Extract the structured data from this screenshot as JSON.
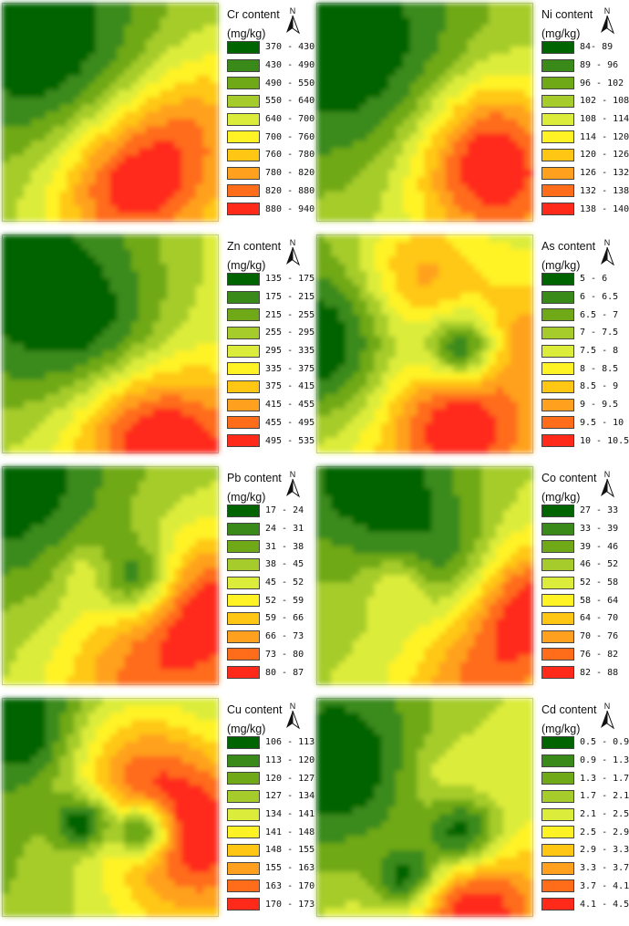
{
  "palette": [
    "#006400",
    "#3a8a1a",
    "#6fa918",
    "#a6cc2c",
    "#dcec3a",
    "#fff326",
    "#ffc714",
    "#ffa11e",
    "#ff6c1a",
    "#ff2a1a"
  ],
  "chart_data": [
    {
      "type": "heatmap",
      "element": "Cr",
      "title": "Cr content",
      "unit": "(mg/kg)",
      "classes": [
        "370 - 430",
        "430 - 490",
        "490 - 550",
        "550 - 640",
        "640 - 700",
        "700 - 760",
        "760 - 780",
        "780 - 820",
        "820 - 880",
        "880 - 940"
      ]
    },
    {
      "type": "heatmap",
      "element": "Ni",
      "title": "Ni content",
      "unit": "(mg/kg)",
      "classes": [
        "84- 89",
        "89 - 96",
        "96 - 102",
        "102 - 108",
        "108 - 114",
        "114 - 120",
        "120 - 126",
        "126 - 132",
        "132 - 138",
        "138 - 140"
      ]
    },
    {
      "type": "heatmap",
      "element": "Zn",
      "title": "Zn content",
      "unit": "(mg/kg)",
      "classes": [
        "135 - 175",
        "175 - 215",
        "215 - 255",
        "255 - 295",
        "295 - 335",
        "335 - 375",
        "375 - 415",
        "415 - 455",
        "455 - 495",
        "495 - 535"
      ]
    },
    {
      "type": "heatmap",
      "element": "As",
      "title": "As content",
      "unit": "(mg/kg)",
      "classes": [
        "5 - 6",
        "6 - 6.5",
        "6.5 - 7",
        "7 - 7.5",
        "7.5 - 8",
        "8 - 8.5",
        "8.5 - 9",
        "9 - 9.5",
        "9.5 - 10",
        "10 - 10.5"
      ]
    },
    {
      "type": "heatmap",
      "element": "Pb",
      "title": "Pb content",
      "unit": "(mg/kg)",
      "classes": [
        "17 - 24",
        "24 - 31",
        "31 - 38",
        "38 - 45",
        "45 - 52",
        "52 - 59",
        "59 - 66",
        "66 - 73",
        "73 - 80",
        "80 - 87"
      ]
    },
    {
      "type": "heatmap",
      "element": "Co",
      "title": "Co content",
      "unit": "(mg/kg)",
      "classes": [
        "27 - 33",
        "33 - 39",
        "39 - 46",
        "46 - 52",
        "52 - 58",
        "58 - 64",
        "64 - 70",
        "70 - 76",
        "76 - 82",
        "82 - 88"
      ]
    },
    {
      "type": "heatmap",
      "element": "Cu",
      "title": "Cu content",
      "unit": "(mg/kg)",
      "classes": [
        "106 - 113",
        "113 - 120",
        "120 - 127",
        "127 - 134",
        "134 - 141",
        "141 - 148",
        "148 - 155",
        "155 - 163",
        "163 - 170",
        "170 - 173"
      ]
    },
    {
      "type": "heatmap",
      "element": "Cd",
      "title": "Cd content",
      "unit": "(mg/kg)",
      "classes": [
        "0.5 - 0.9",
        "0.9 - 1.3",
        "1.3 - 1.7",
        "1.7 - 2.1",
        "2.1 - 2.5",
        "2.5 - 2.9",
        "2.9 - 3.3",
        "3.3 - 3.7",
        "3.7 - 4.1",
        "4.1 - 4.5"
      ]
    }
  ]
}
